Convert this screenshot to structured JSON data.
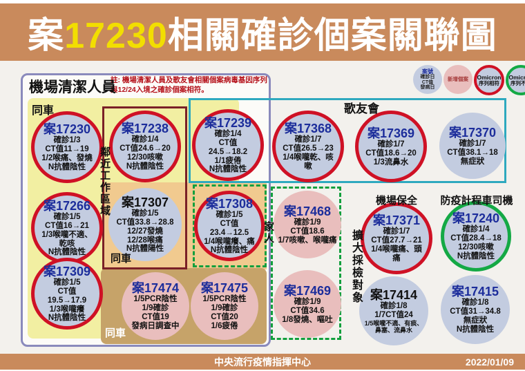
{
  "header": {
    "prefix": "案",
    "case_no": "17230",
    "suffix": "相關確診個案關聯圖"
  },
  "footer": {
    "org": "中央流行疫情指揮中心",
    "date": "2022/01/09"
  },
  "legend": {
    "info": {
      "title": "案號",
      "lines": [
        "確診日",
        "CT值",
        "發病日"
      ]
    },
    "new_case": {
      "label": "新增個案"
    },
    "omicron_match": {
      "title": "Omicron",
      "label": "序列相符"
    },
    "omicron_diff": {
      "title": "Omicron",
      "label": "序列不同"
    }
  },
  "main_box": {
    "title": "機場清潔人員",
    "note": "註: 機場清潔人員及歌友會相關個案病毒基因序列與12/24入境之確診個案相符。"
  },
  "labels": {
    "same_car_top": "同車",
    "adjacent_work_area": "鄰近工作區域",
    "same_car_mid": "同車",
    "same_car_bottom": "同車",
    "fan_club": "歌友會",
    "family": "家人",
    "expanded_testing": "擴大採檢對象",
    "airport_security": "機場保全",
    "quarantine_taxi_driver": "防疫計程車司機"
  },
  "colors": {
    "header_bg": "#c98a5c",
    "title_number_yellow": "#f2de00",
    "omicron_match_ring": "#cf1125",
    "omicron_diff_ring": "#14a945",
    "case_fill_blue": "#c3cce0",
    "new_case_pink": "#e9bebd",
    "yellow_region": "#f2efa2",
    "orange_region": "#f1ca8f",
    "tan_region": "#c6a369",
    "maroon_border": "#7a2027",
    "teal_border": "#2ea9bf",
    "green_dash_border": "#119f3d",
    "case_number_blue": "#1c2d9b",
    "note_red": "#b5121b"
  },
  "cases": [
    {
      "id": "17230",
      "title": "案17230",
      "variant": "omicron-match",
      "lines": [
        "確診1/3",
        "CT值11→19",
        "1/2喉痛、發燒",
        "N抗體陰性"
      ]
    },
    {
      "id": "17266",
      "title": "案17266",
      "variant": "omicron-match",
      "lines": [
        "確診1/5",
        "CT值16→21",
        "1/3喉嚨不適、乾咳",
        "N抗體陰性"
      ]
    },
    {
      "id": "17309",
      "title": "案17309",
      "variant": "omicron-match",
      "lines": [
        "確診1/5",
        "CT值19.5→17.9",
        "1/3喉嚨癢",
        "N抗體陰性"
      ]
    },
    {
      "id": "17238",
      "title": "案17238",
      "variant": "omicron-match",
      "lines": [
        "確診1/4",
        "CT值24.6→20",
        "12/30咳嗽",
        "N抗體陰性"
      ]
    },
    {
      "id": "17307",
      "title": "案17307",
      "variant": "base",
      "lines": [
        "確診1/5",
        "CT值33.8→28.8",
        "12/27發燒",
        "12/28喉痛",
        "N抗體陽性"
      ]
    },
    {
      "id": "17239",
      "title": "案17239",
      "variant": "omicron-match",
      "lines": [
        "確診1/4",
        "CT值24.5→18.2",
        "1/1疲倦",
        "N抗體陰性"
      ]
    },
    {
      "id": "17308",
      "title": "案17308",
      "variant": "omicron-match",
      "lines": [
        "確診1/5",
        "CT值23.4→12.5",
        "1/4喉嚨癢、痛",
        "N抗體陰性"
      ]
    },
    {
      "id": "17368",
      "title": "案17368",
      "variant": "omicron-match",
      "lines": [
        "確診1/7",
        "CT值26.5→23",
        "1/4喉嚨乾、咳嗽"
      ]
    },
    {
      "id": "17369",
      "title": "案17369",
      "variant": "omicron-match",
      "lines": [
        "確診1/7",
        "CT值18.6→20",
        "1/3流鼻水"
      ]
    },
    {
      "id": "17370",
      "title": "案17370",
      "variant": "base",
      "lines": [
        "確診1/7",
        "CT值38.1→18",
        "無症狀"
      ]
    },
    {
      "id": "17474",
      "title": "案17474",
      "variant": "new",
      "lines": [
        "1/5PCR陰性",
        "1/9確診",
        "CT值19",
        "發病日調查中"
      ]
    },
    {
      "id": "17475",
      "title": "案17475",
      "variant": "new",
      "lines": [
        "1/5PCR陰性",
        "1/9確診",
        "CT值20",
        "1/6疲倦"
      ]
    },
    {
      "id": "17468",
      "title": "案17468",
      "variant": "new",
      "lines": [
        "確診1/9",
        "CT值18.6",
        "1/7咳嗽、喉嚨痛"
      ]
    },
    {
      "id": "17469",
      "title": "案17469",
      "variant": "new",
      "lines": [
        "確診1/9",
        "CT值34.6",
        "1/8發燒、嘔吐"
      ]
    },
    {
      "id": "17371",
      "title": "案17371",
      "variant": "omicron-match",
      "lines": [
        "確診1/7",
        "CT值27.7→21",
        "1/4喉嚨痛、頭痛"
      ]
    },
    {
      "id": "17240",
      "title": "案17240",
      "variant": "omicron-diff",
      "lines": [
        "確診1/4",
        "CT值28.4→18",
        "12/30咳嗽",
        "N抗體陰性"
      ]
    },
    {
      "id": "17414",
      "title": "案17414",
      "variant": "base",
      "lines": [
        "確診1/8",
        "1/7CT值24",
        "1/5喉嚨不適、有痰、鼻塞、流鼻水"
      ]
    },
    {
      "id": "17415",
      "title": "案17415",
      "variant": "base",
      "lines": [
        "確診1/8",
        "CT值31→34.8",
        "無症狀",
        "N抗體陰性"
      ]
    }
  ]
}
